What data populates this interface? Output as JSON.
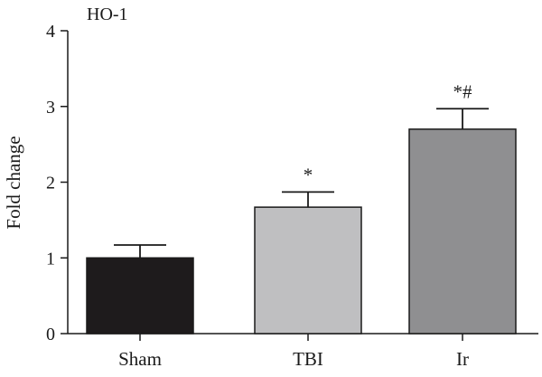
{
  "chart_data": {
    "type": "bar",
    "title": "HO-1",
    "xlabel": "",
    "ylabel": "Fold change",
    "categories": [
      "Sham",
      "TBI",
      "Ir"
    ],
    "values": [
      1.0,
      1.67,
      2.7
    ],
    "errors": [
      0.17,
      0.2,
      0.27
    ],
    "annotations": [
      "",
      "*",
      "*#"
    ],
    "ylim": [
      0,
      4
    ],
    "yticks": [
      0,
      1,
      2,
      3,
      4
    ],
    "grid": false,
    "colors": [
      "#1e1b1c",
      "#bfbfc1",
      "#8f8f91"
    ]
  }
}
